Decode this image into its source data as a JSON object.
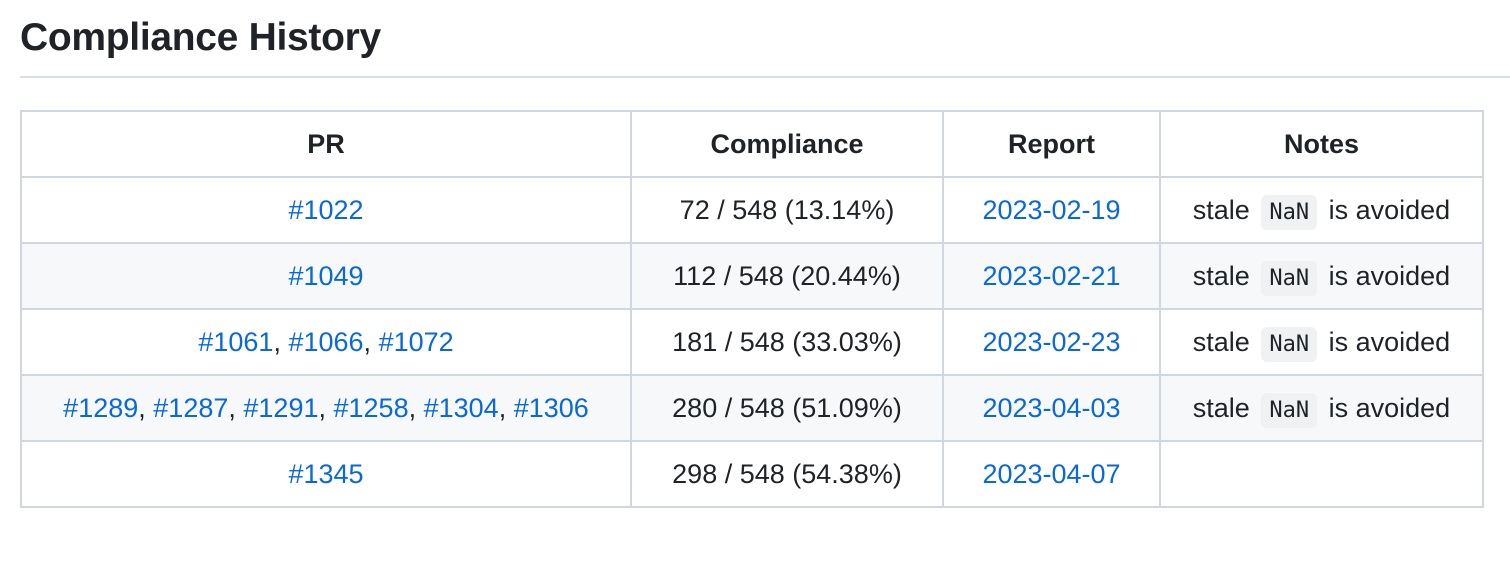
{
  "title": "Compliance History",
  "colors": {
    "link": "#0969da",
    "text": "#1f2328",
    "border": "#d0d7de",
    "row_alt": "#f6f8fa",
    "code_bg": "#eff1f3"
  },
  "table": {
    "headers": [
      "PR",
      "Compliance",
      "Report",
      "Notes"
    ],
    "rows": [
      {
        "prs": [
          "#1022"
        ],
        "compliance": "72 / 548 (13.14%)",
        "report": "2023-02-19",
        "notes": {
          "before": "stale",
          "code": "NaN",
          "after": "is avoided"
        }
      },
      {
        "prs": [
          "#1049"
        ],
        "compliance": "112 / 548 (20.44%)",
        "report": "2023-02-21",
        "notes": {
          "before": "stale",
          "code": "NaN",
          "after": "is avoided"
        }
      },
      {
        "prs": [
          "#1061",
          "#1066",
          "#1072"
        ],
        "compliance": "181 / 548 (33.03%)",
        "report": "2023-02-23",
        "notes": {
          "before": "stale",
          "code": "NaN",
          "after": "is avoided"
        }
      },
      {
        "prs": [
          "#1289",
          "#1287",
          "#1291",
          "#1258",
          "#1304",
          "#1306"
        ],
        "compliance": "280 / 548 (51.09%)",
        "report": "2023-04-03",
        "notes": {
          "before": "stale",
          "code": "NaN",
          "after": "is avoided"
        }
      },
      {
        "prs": [
          "#1345"
        ],
        "compliance": "298 / 548 (54.38%)",
        "report": "2023-04-07",
        "notes": null
      }
    ]
  }
}
